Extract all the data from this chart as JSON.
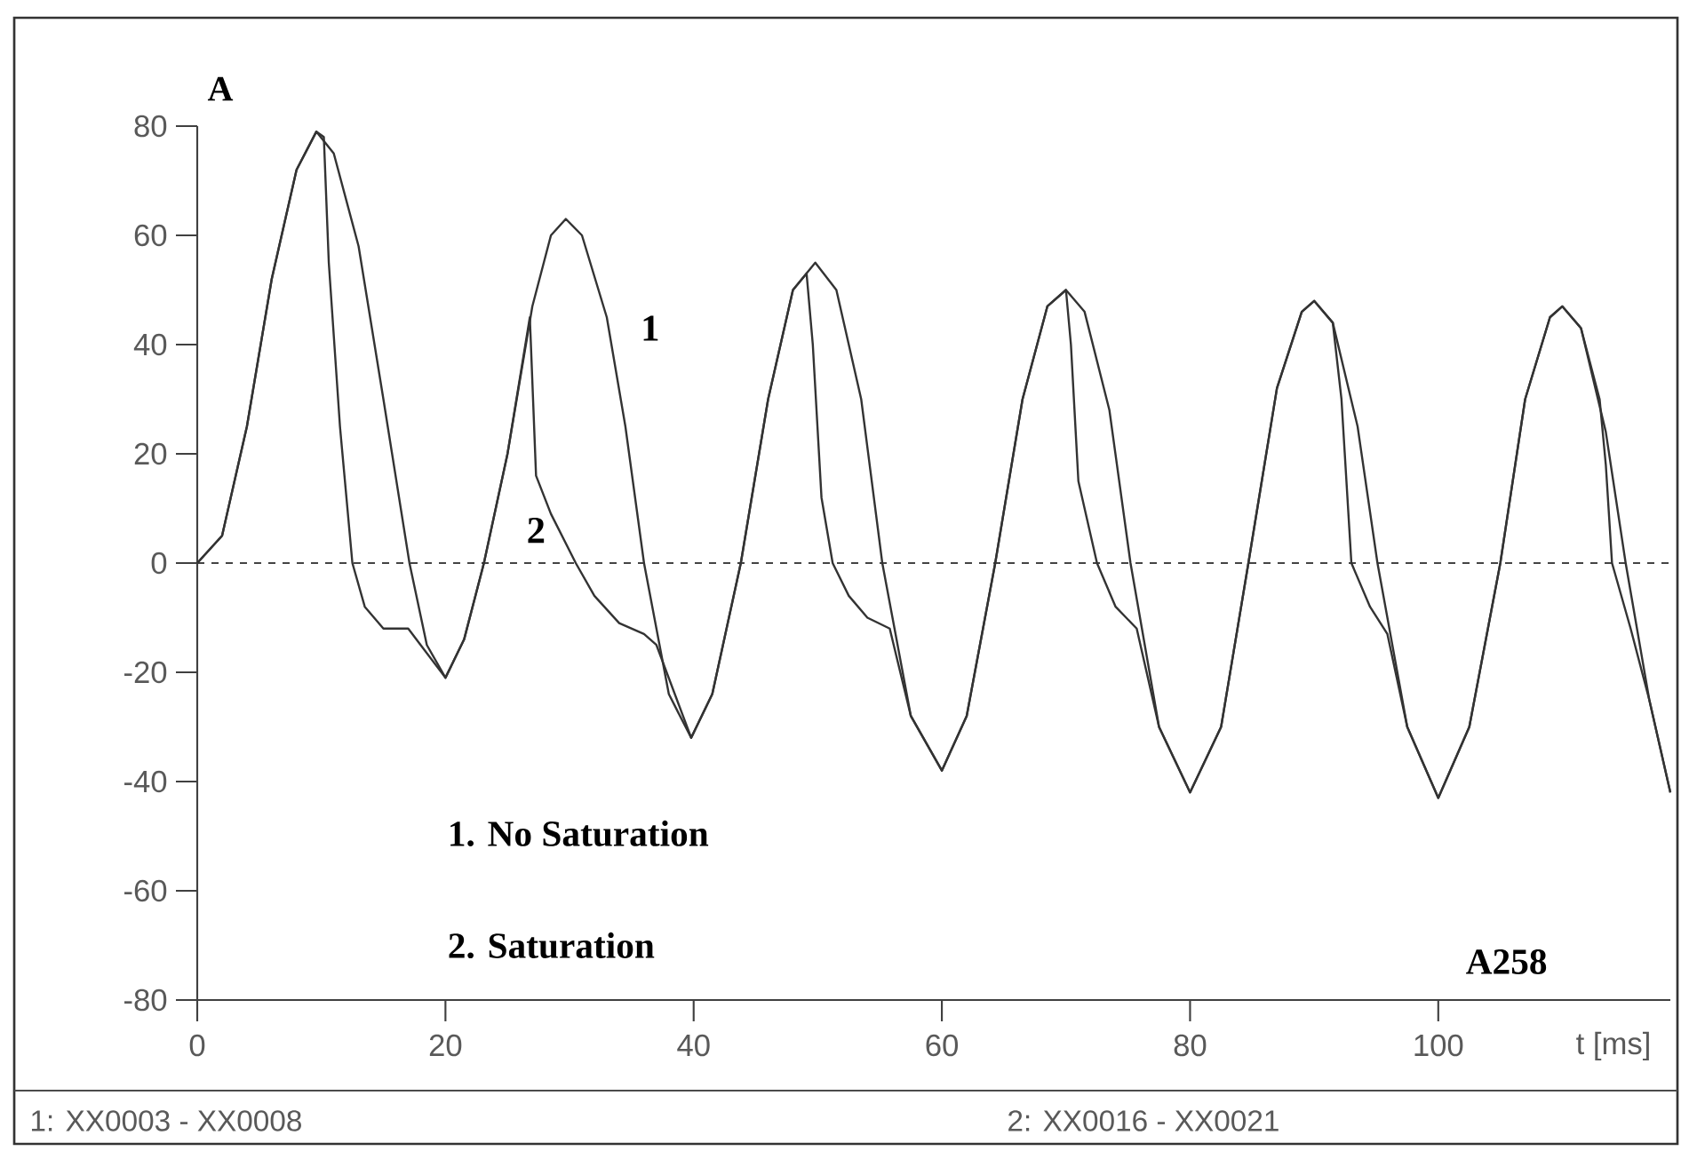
{
  "chart_data": {
    "type": "line",
    "xlabel": "t [ms]",
    "ylabel": "A",
    "xlim": [
      0,
      118.7
    ],
    "ylim": [
      -80,
      80
    ],
    "xticks": [
      0,
      20,
      40,
      60,
      80,
      100
    ],
    "yticks": [
      -80,
      -60,
      -40,
      -20,
      0,
      20,
      40,
      60,
      80
    ],
    "series": [
      {
        "name": "1",
        "color": "#333333",
        "x": [
          0,
          2,
          4,
          6,
          8,
          9.6,
          11,
          13,
          15,
          17.1,
          18.5,
          20,
          21.5,
          23.1,
          25,
          27,
          28.5,
          29.7,
          31,
          33,
          34.5,
          36,
          38,
          39.8,
          41.5,
          43.8,
          46,
          48,
          49.8,
          51.5,
          53.5,
          55.2,
          57.5,
          60,
          62,
          64.3,
          66.5,
          68.5,
          70,
          71.5,
          73.5,
          75.2,
          77.5,
          80,
          82.5,
          84.7,
          87,
          89,
          90,
          91.5,
          93.5,
          95.1,
          97.5,
          100,
          102.5,
          105,
          107,
          109,
          110,
          111.5,
          113.5,
          115.1,
          117,
          118.7
        ],
        "values": [
          0,
          5,
          25,
          52,
          72,
          79,
          75,
          58,
          30,
          0,
          -15,
          -21,
          -14,
          0,
          20,
          47,
          60,
          63,
          60,
          45,
          25,
          0,
          -24,
          -32,
          -24,
          0,
          30,
          50,
          55,
          50,
          30,
          0,
          -28,
          -38,
          -28,
          0,
          30,
          47,
          50,
          46,
          28,
          0,
          -30,
          -42,
          -30,
          0,
          32,
          46,
          48,
          44,
          25,
          0,
          -30,
          -43,
          -30,
          0,
          30,
          45,
          47,
          43,
          24,
          0,
          -25,
          -42
        ]
      },
      {
        "name": "2",
        "color": "#333333",
        "x": [
          0,
          2,
          4,
          6,
          8,
          9.6,
          10.2,
          10.6,
          11.5,
          12.5,
          13.5,
          15,
          17,
          18,
          20,
          21.5,
          23.1,
          25,
          26.8,
          27.3,
          28.5,
          30.5,
          32,
          34,
          36,
          37,
          39.8,
          41.5,
          43.8,
          46,
          48,
          49.1,
          49.6,
          50.3,
          51.2,
          52.5,
          54,
          55.8,
          57.5,
          60,
          62,
          64.3,
          66.5,
          68.5,
          70,
          70.4,
          71,
          72.5,
          74,
          75.7,
          77.5,
          80,
          82.5,
          84.7,
          87,
          89,
          90,
          91.5,
          92.2,
          93,
          94.5,
          95.9,
          97.5,
          100,
          102.5,
          105,
          107,
          109,
          110,
          111.5,
          113,
          113.5,
          114,
          115.5,
          117,
          118.7
        ],
        "values": [
          0,
          5,
          25,
          52,
          72,
          79,
          78,
          55,
          25,
          0,
          -8,
          -12,
          -12,
          -15,
          -21,
          -14,
          0,
          20,
          45,
          16,
          9,
          0,
          -6,
          -11,
          -13,
          -15,
          -32,
          -24,
          0,
          30,
          50,
          53,
          40,
          12,
          0,
          -6,
          -10,
          -12,
          -28,
          -38,
          -28,
          0,
          30,
          47,
          50,
          40,
          15,
          0,
          -8,
          -12,
          -30,
          -42,
          -30,
          0,
          32,
          46,
          48,
          44,
          30,
          0,
          -8,
          -13,
          -30,
          -43,
          -30,
          0,
          30,
          45,
          47,
          43,
          30,
          18,
          0,
          -12,
          -25,
          -42
        ]
      }
    ],
    "ref_lines": [
      {
        "axis": "y",
        "value": 0,
        "line_style": "dashed",
        "color": "#444444"
      }
    ],
    "annotations": [
      "1. No Saturation",
      "2. Saturation",
      "A258",
      "1: XX0003 - XX0008",
      "2: XX0016 - XX0021"
    ]
  }
}
